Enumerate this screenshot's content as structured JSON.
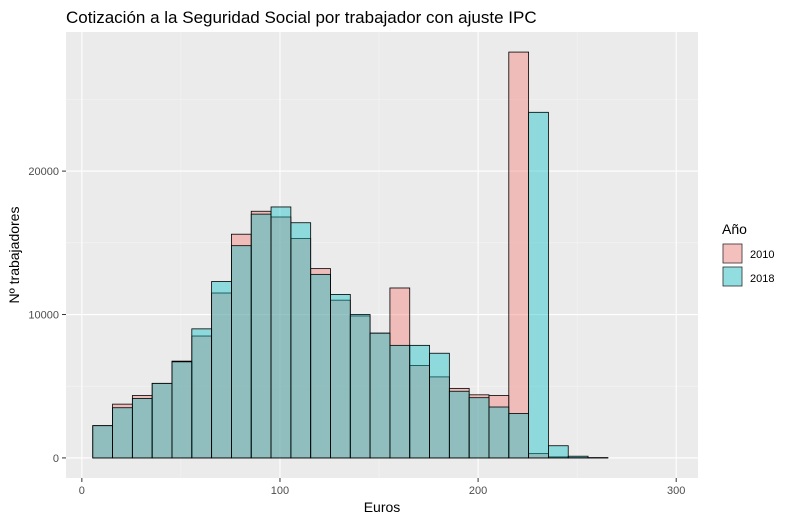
{
  "chart_data": {
    "type": "histogram",
    "title": "Cotización a la Seguridad Social por trabajador con ajuste IPC",
    "xlabel": "Euros",
    "ylabel": "Nº trabajadores",
    "xlim": [
      -8,
      311
    ],
    "ylim": [
      -1400,
      29700
    ],
    "x_ticks": [
      0,
      100,
      200,
      300
    ],
    "y_ticks": [
      0,
      10000,
      20000
    ],
    "grid": true,
    "legend": {
      "title": "Año",
      "position": "right"
    },
    "bins": [
      [
        5.5,
        15.5
      ],
      [
        15.5,
        25.5
      ],
      [
        25.5,
        35.5
      ],
      [
        35.5,
        45.5
      ],
      [
        45.5,
        55.5
      ],
      [
        55.5,
        65.5
      ],
      [
        65.5,
        75.5
      ],
      [
        75.5,
        85.5
      ],
      [
        85.5,
        95.5
      ],
      [
        95.5,
        105.5
      ],
      [
        105.5,
        115.5
      ],
      [
        115.5,
        125.5
      ],
      [
        125.5,
        135.5
      ],
      [
        135.5,
        145.5
      ],
      [
        145.5,
        155.5
      ],
      [
        155.5,
        165.5
      ],
      [
        165.5,
        175.5
      ],
      [
        175.5,
        185.5
      ],
      [
        185.5,
        195.5
      ],
      [
        195.5,
        205.5
      ],
      [
        205.5,
        215.5
      ],
      [
        215.5,
        225.5
      ],
      [
        225.5,
        235.5
      ],
      [
        235.5,
        245.5
      ],
      [
        245.5,
        255.5
      ],
      [
        255.5,
        265.5
      ],
      [
        265.5,
        275.5
      ],
      [
        275.5,
        285.5
      ],
      [
        285.5,
        295.5
      ]
    ],
    "series": [
      {
        "name": "2010",
        "color": "#F8766D",
        "values": [
          2250,
          3750,
          4350,
          5200,
          6750,
          8500,
          11500,
          15600,
          17200,
          16800,
          15300,
          13200,
          11000,
          9900,
          8700,
          11850,
          6450,
          5650,
          4850,
          4400,
          4350,
          28300,
          300,
          70,
          20,
          10,
          0,
          0,
          0
        ]
      },
      {
        "name": "2018",
        "color": "#00BFC4",
        "values": [
          2250,
          3500,
          4150,
          5200,
          6700,
          9000,
          12300,
          14800,
          17000,
          17500,
          16400,
          12800,
          11400,
          10000,
          8700,
          7850,
          7850,
          7300,
          4650,
          4200,
          3550,
          3100,
          24100,
          850,
          120,
          20,
          0,
          0,
          0
        ]
      }
    ]
  }
}
